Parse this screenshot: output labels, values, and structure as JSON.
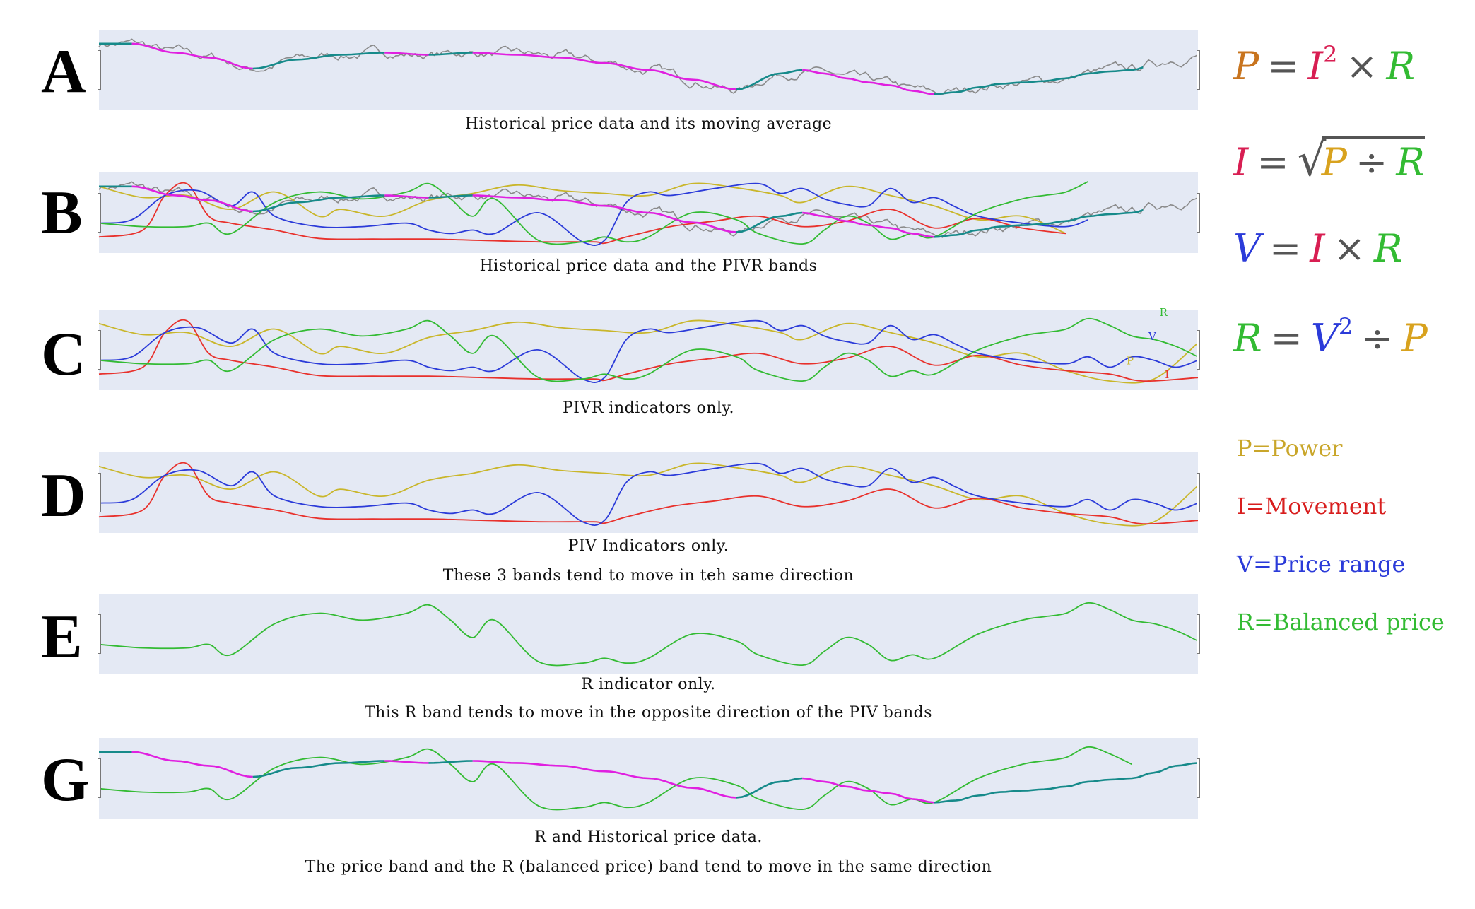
{
  "colors": {
    "power": "#c9b62a",
    "movement": "#e8312c",
    "price_range": "#2b3bd9",
    "balanced": "#33bb33",
    "price_raw": "#8a8a8a",
    "ma_down": "#e020e0",
    "ma_up": "#168a8a",
    "panel_bg": "#e4e9f4"
  },
  "panels": [
    {
      "letter": "A",
      "caption": [
        "Historical price data and its moving average"
      ],
      "series": [
        "price",
        "ma"
      ]
    },
    {
      "letter": "B",
      "caption": [
        "Historical price data and the PIVR bands"
      ],
      "series": [
        "price",
        "ma",
        "P",
        "I",
        "V",
        "R"
      ]
    },
    {
      "letter": "C",
      "caption": [
        "PIVR indicators only."
      ],
      "series": [
        "P",
        "I",
        "V",
        "R"
      ],
      "end_labels": [
        "R",
        "V",
        "P",
        "I"
      ]
    },
    {
      "letter": "D",
      "caption": [
        "PIV Indicators only.",
        "These 3 bands tend to move in teh same direction"
      ],
      "series": [
        "P",
        "I",
        "V"
      ]
    },
    {
      "letter": "E",
      "caption": [
        "R indicator only.",
        "This R band tends to move in the opposite direction of the PIV bands"
      ],
      "series": [
        "R"
      ]
    },
    {
      "letter": "G",
      "caption": [
        "R and Historical price data.",
        "The price band and the R (balanced price) band tend to move in the same direction"
      ],
      "series": [
        "ma",
        "R"
      ]
    }
  ],
  "formulas": [
    {
      "lhs": "P",
      "a": "I",
      "exp": "2",
      "op": "×",
      "b": "R"
    },
    {
      "lhs": "I",
      "a": "P",
      "op": "÷",
      "b": "R",
      "sqrt": true
    },
    {
      "lhs": "V",
      "a": "I",
      "op": "×",
      "b": "R"
    },
    {
      "lhs": "R",
      "a": "V",
      "exp": "2",
      "op": "÷",
      "b": "P"
    }
  ],
  "legend": [
    {
      "text": "P=Power",
      "color": "#c9a62a"
    },
    {
      "text": "I=Movement",
      "color": "#d81e1e"
    },
    {
      "text": "V=Price range",
      "color": "#2b3bd9"
    },
    {
      "text": "R=Balanced price",
      "color": "#33bb33"
    }
  ],
  "chart_data": {
    "type": "line",
    "title": "",
    "x_range": [
      0,
      100
    ],
    "y_range": [
      0,
      1
    ],
    "grid": false,
    "series": [
      {
        "name": "P",
        "x": [
          0,
          4,
          8,
          12,
          16,
          20,
          22,
          26,
          30,
          34,
          38,
          42,
          46,
          50,
          54,
          58,
          62,
          64,
          68,
          72,
          76,
          80,
          84,
          88,
          92,
          96,
          100
        ],
        "values": [
          0.88,
          0.72,
          0.75,
          0.55,
          0.8,
          0.45,
          0.55,
          0.45,
          0.68,
          0.78,
          0.9,
          0.82,
          0.78,
          0.75,
          0.92,
          0.86,
          0.75,
          0.65,
          0.88,
          0.75,
          0.6,
          0.4,
          0.45,
          0.2,
          0.05,
          0.08,
          0.6
        ]
      },
      {
        "name": "I",
        "x": [
          0,
          4,
          6,
          8,
          10,
          12,
          16,
          20,
          25,
          30,
          35,
          40,
          45,
          46,
          48,
          52,
          56,
          60,
          64,
          68,
          72,
          76,
          80,
          84,
          88,
          92,
          95,
          100
        ],
        "values": [
          0.15,
          0.25,
          0.75,
          0.92,
          0.45,
          0.35,
          0.25,
          0.13,
          0.12,
          0.12,
          0.1,
          0.08,
          0.08,
          0.06,
          0.15,
          0.3,
          0.38,
          0.45,
          0.3,
          0.38,
          0.55,
          0.28,
          0.42,
          0.28,
          0.2,
          0.15,
          0.05,
          0.1
        ]
      },
      {
        "name": "V",
        "x": [
          0,
          3,
          6,
          9,
          12,
          14,
          16,
          20,
          24,
          28,
          30,
          32,
          34,
          36,
          40,
          44,
          46,
          48,
          50,
          52,
          56,
          60,
          62,
          64,
          66,
          68,
          70,
          72,
          74,
          76,
          78,
          80,
          84,
          88,
          90,
          92,
          94,
          96,
          98,
          100
        ],
        "values": [
          0.35,
          0.4,
          0.75,
          0.82,
          0.6,
          0.8,
          0.45,
          0.3,
          0.3,
          0.35,
          0.25,
          0.2,
          0.25,
          0.2,
          0.5,
          0.08,
          0.1,
          0.65,
          0.8,
          0.75,
          0.85,
          0.92,
          0.78,
          0.85,
          0.7,
          0.62,
          0.6,
          0.85,
          0.65,
          0.72,
          0.58,
          0.45,
          0.35,
          0.3,
          0.4,
          0.25,
          0.4,
          0.35,
          0.25,
          0.35
        ]
      },
      {
        "name": "R",
        "x": [
          0,
          4,
          8,
          10,
          12,
          16,
          20,
          24,
          28,
          30,
          32,
          34,
          36,
          40,
          44,
          46,
          48,
          50,
          54,
          58,
          60,
          64,
          66,
          68,
          70,
          72,
          74,
          76,
          80,
          84,
          86,
          88,
          90,
          92,
          94,
          96,
          98,
          100
        ],
        "values": [
          0.35,
          0.3,
          0.3,
          0.35,
          0.2,
          0.65,
          0.8,
          0.7,
          0.8,
          0.92,
          0.7,
          0.45,
          0.7,
          0.1,
          0.08,
          0.15,
          0.08,
          0.15,
          0.5,
          0.4,
          0.2,
          0.05,
          0.25,
          0.45,
          0.35,
          0.12,
          0.2,
          0.15,
          0.5,
          0.7,
          0.75,
          0.8,
          0.95,
          0.85,
          0.7,
          0.65,
          0.55,
          0.4
        ]
      },
      {
        "name": "price (moving average)",
        "x": [
          0,
          3,
          7,
          10,
          14,
          18,
          22,
          26,
          30,
          34,
          38,
          42,
          46,
          50,
          54,
          58,
          62,
          64,
          66,
          68,
          70,
          72,
          74,
          76,
          78,
          80,
          82,
          84,
          86,
          88,
          90,
          92,
          94,
          96,
          98,
          100
        ],
        "values": [
          0.88,
          0.88,
          0.75,
          0.68,
          0.52,
          0.65,
          0.72,
          0.75,
          0.72,
          0.75,
          0.72,
          0.68,
          0.6,
          0.5,
          0.36,
          0.22,
          0.45,
          0.5,
          0.45,
          0.38,
          0.32,
          0.28,
          0.2,
          0.15,
          0.18,
          0.25,
          0.3,
          0.32,
          0.34,
          0.38,
          0.45,
          0.48,
          0.5,
          0.58,
          0.68,
          0.72
        ]
      }
    ]
  }
}
